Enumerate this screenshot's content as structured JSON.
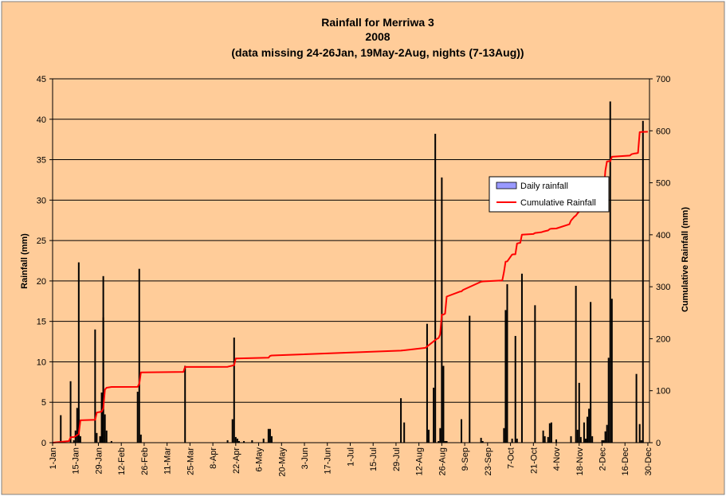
{
  "chart_data": {
    "type": "bar",
    "title": "Rainfall for Merriwa 3",
    "subtitle": "2008",
    "subtitle2": "(data missing 24-26Jan, 19May-2Aug, nights (7-13Aug))",
    "ylabel": "Rainfall (mm)",
    "y2label": "Cumulative Rainfall (mm)",
    "ylim": [
      0,
      45
    ],
    "yticks": [
      0,
      5,
      10,
      15,
      20,
      25,
      30,
      35,
      40,
      45
    ],
    "y2lim": [
      0,
      700
    ],
    "y2ticks": [
      0,
      100,
      200,
      300,
      400,
      500,
      600,
      700
    ],
    "xlim": [
      1,
      366
    ],
    "xtick_days": [
      1,
      15,
      29,
      43,
      57,
      71,
      85,
      99,
      113,
      127,
      141,
      155,
      169,
      183,
      197,
      211,
      225,
      239,
      253,
      267,
      281,
      295,
      309,
      323,
      337,
      351,
      365
    ],
    "xtick_labels": [
      "1-Jan",
      "15-Jan",
      "29-Jan",
      "12-Feb",
      "26-Feb",
      "11-Mar",
      "25-Mar",
      "8-Apr",
      "22-Apr",
      "6-May",
      "20-May",
      "3-Jun",
      "17-Jun",
      "1-Jul",
      "15-Jul",
      "29-Jul",
      "12-Aug",
      "26-Aug",
      "9-Sep",
      "23-Sep",
      "7-Oct",
      "21-Oct",
      "4-Nov",
      "18-Nov",
      "2-Dec",
      "16-Dec",
      "30-Dec"
    ],
    "grid": true,
    "legend_position": "right",
    "colors": {
      "background": "#FFCC99",
      "plot_area": "#FFCC99",
      "bars": "#000000",
      "cumulative": "#FF0000",
      "legend_bar_fill": "#9999FF"
    },
    "series": [
      {
        "name": "Daily rainfall",
        "type": "bar",
        "axis": "left",
        "day": [
          6,
          12,
          14,
          15,
          16,
          17,
          17,
          18,
          27,
          28,
          30,
          31,
          32,
          32,
          33,
          34,
          37,
          53,
          54,
          55,
          82,
          108,
          111,
          112,
          113,
          114,
          115,
          118,
          123,
          130,
          133,
          134,
          135,
          214,
          216,
          230,
          231,
          234,
          235,
          237,
          238,
          239,
          240,
          241,
          242,
          251,
          256,
          263,
          264,
          277,
          278,
          279,
          282,
          284,
          285,
          288,
          296,
          301,
          302,
          304,
          305,
          306,
          309,
          318,
          321,
          322,
          323,
          324,
          326,
          327,
          328,
          329,
          330,
          331,
          337,
          338,
          339,
          340,
          341,
          342,
          343,
          358,
          360,
          361,
          362
        ],
        "values": [
          3.4,
          7.6,
          0.3,
          1.5,
          4.3,
          22.3,
          4.1,
          0.8,
          14.0,
          1.2,
          0.8,
          6.2,
          15.5,
          20.6,
          3.5,
          1.5,
          0.2,
          6.3,
          21.5,
          1.0,
          9.5,
          0.3,
          2.9,
          13.0,
          0.7,
          0.5,
          0.2,
          0.2,
          0.3,
          0.5,
          1.7,
          1.7,
          0.8,
          5.5,
          2.5,
          14.7,
          1.6,
          6.8,
          38.2,
          0.2,
          1.8,
          32.8,
          9.5,
          0.2,
          0.2,
          2.9,
          15.7,
          0.6,
          0.2,
          1.8,
          16.4,
          19.6,
          0.5,
          13.2,
          0.5,
          20.9,
          17.0,
          1.5,
          0.8,
          0.7,
          2.4,
          2.5,
          0.4,
          0.8,
          19.4,
          1.6,
          7.4,
          0.7,
          2.5,
          0.5,
          3.2,
          4.2,
          17.4,
          0.8,
          0.3,
          0.3,
          1.4,
          2.2,
          10.5,
          42.2,
          17.8,
          8.5,
          2.3,
          0.3,
          39.8
        ]
      },
      {
        "name": "Cumulative Rainfall",
        "type": "line",
        "axis": "right",
        "x": [
          1,
          11,
          12,
          14,
          15,
          17,
          18,
          27,
          28,
          30,
          31,
          32,
          33,
          34,
          37,
          53,
          54,
          55,
          81,
          82,
          108,
          112,
          113,
          133,
          134,
          135,
          214,
          229,
          230,
          236,
          237,
          238,
          239,
          240,
          241,
          242,
          250,
          251,
          252,
          263,
          264,
          265,
          276,
          277,
          278,
          279,
          282,
          283,
          284,
          285,
          287,
          288,
          295,
          296,
          300,
          301,
          304,
          305,
          306,
          309,
          317,
          318,
          320,
          321,
          322,
          324,
          327,
          330,
          331,
          336,
          337,
          338,
          339,
          340,
          341,
          342,
          343,
          354,
          355,
          357,
          358,
          359,
          360,
          361,
          362,
          365
        ],
        "values": [
          0,
          3,
          10.6,
          10.9,
          12.4,
          16.7,
          43.1,
          43.9,
          57.9,
          59.1,
          59.9,
          66.1,
          102.2,
          105.7,
          107.2,
          107.4,
          113.7,
          135.2,
          136.2,
          145.7,
          146.0,
          149.1,
          162.1,
          163.5,
          166.9,
          167.7,
          177.0,
          182.5,
          185.0,
          199.7,
          201.3,
          208.1,
          246.3,
          246.5,
          248.3,
          281.1,
          290.6,
          291.0,
          293.9,
          309.6,
          310.2,
          310.4,
          312.2,
          328.6,
          348.2,
          348.7,
          361.9,
          362.4,
          362.4,
          383.3,
          384.6,
          400.3,
          401.5,
          403.5,
          405.0,
          406.0,
          408.4,
          410.9,
          411.7,
          412.1,
          420.1,
          427.3,
          434.5,
          437.0,
          441.3,
          448.2,
          465.6,
          466.3,
          466.7,
          468.2,
          470.4,
          480.9,
          523.1,
          540.9,
          541.4,
          541.5,
          550.0,
          552.3,
          555.0,
          556.5,
          556.8,
          557.5,
          597.3,
          597.8,
          598.0,
          598.2
        ]
      }
    ]
  }
}
